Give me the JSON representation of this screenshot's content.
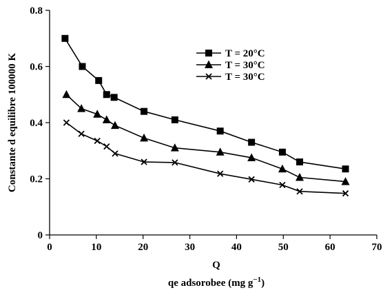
{
  "chart_data": {
    "type": "line",
    "xlabel_top": "Q",
    "xlabel": "qe adsorobee (mg g",
    "xlabel_sup": "−1",
    "xlabel_end": ")",
    "ylabel": "Constante d equilibre 100000 K",
    "xlim": [
      0,
      70
    ],
    "ylim": [
      0,
      0.8
    ],
    "xticks": [
      0,
      10,
      20,
      30,
      40,
      50,
      60,
      70
    ],
    "yticks": [
      0,
      0.2,
      0.4,
      0.6,
      0.8
    ],
    "ytick_labels": [
      "0",
      "0.2",
      "0.4",
      "0.6",
      "0.8"
    ],
    "legend_position": "top-right",
    "grid": false,
    "series": [
      {
        "name": "T = 20°C",
        "marker": "square",
        "x": [
          3.3,
          7.0,
          10.5,
          12.2,
          13.8,
          20.2,
          26.8,
          36.5,
          43.2,
          49.8,
          53.5,
          63.3
        ],
        "y": [
          0.7,
          0.6,
          0.55,
          0.5,
          0.49,
          0.44,
          0.41,
          0.37,
          0.33,
          0.295,
          0.26,
          0.235
        ]
      },
      {
        "name": "T = 30°C",
        "marker": "triangle",
        "x": [
          3.6,
          6.8,
          10.2,
          12.2,
          14.0,
          20.2,
          26.8,
          36.5,
          43.2,
          49.8,
          53.5,
          63.3
        ],
        "y": [
          0.5,
          0.45,
          0.43,
          0.41,
          0.39,
          0.345,
          0.31,
          0.295,
          0.275,
          0.235,
          0.205,
          0.19
        ]
      },
      {
        "name": "T = 30°C",
        "marker": "x",
        "x": [
          3.6,
          6.8,
          10.2,
          12.2,
          14.0,
          20.2,
          26.8,
          36.5,
          43.2,
          49.8,
          53.5,
          63.3
        ],
        "y": [
          0.4,
          0.36,
          0.335,
          0.315,
          0.29,
          0.26,
          0.258,
          0.218,
          0.198,
          0.178,
          0.155,
          0.148
        ]
      }
    ]
  }
}
